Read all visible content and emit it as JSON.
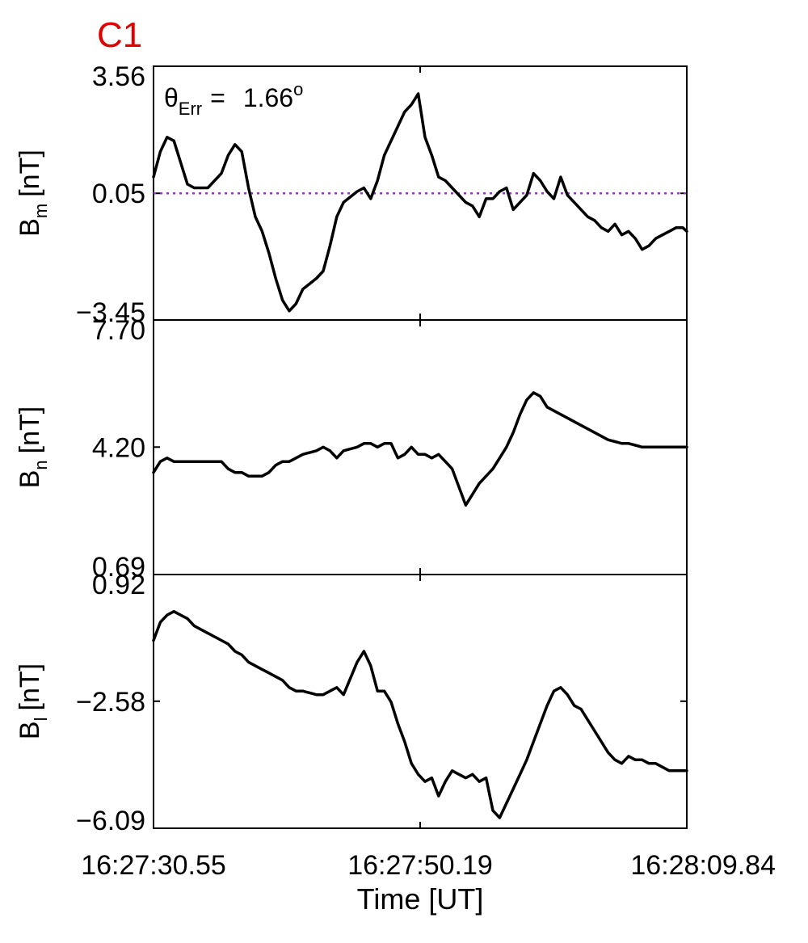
{
  "figure_label": "C1",
  "annotation": {
    "theta_symbol": "θ",
    "theta_subscript": "Err",
    "equals": "=",
    "value": "1.66",
    "unit_superscript": "o"
  },
  "colors": {
    "figure_label": "#e00000",
    "trace": "#000000",
    "reference_line": "#9b30d9",
    "axes": "#000000"
  },
  "x_axis": {
    "label": "Time [UT]",
    "ticks": [
      "16:27:30.55",
      "16:27:50.19",
      "16:28:09.84"
    ],
    "range_seconds": [
      0,
      39.29
    ]
  },
  "chart_data": [
    {
      "type": "line",
      "panel": "Bm",
      "ylabel_symbol": "B",
      "ylabel_subscript": "m",
      "ylabel_unit": "[nT]",
      "ylim": [
        -3.45,
        3.56
      ],
      "yticks": [
        3.56,
        0.05,
        -3.45
      ],
      "ytick_labels": [
        "3.56",
        "0.05",
        "−3.45"
      ],
      "reference_line": {
        "y": 0.05,
        "style": "dotted"
      },
      "x": [
        0,
        0.5,
        1,
        1.5,
        2,
        2.5,
        3,
        3.5,
        4,
        5,
        5.5,
        6,
        6.5,
        7,
        7.5,
        8,
        8.5,
        9,
        9.5,
        10,
        10.5,
        11,
        12,
        12.5,
        13,
        13.5,
        14,
        15,
        15.5,
        16,
        16.5,
        17,
        17.5,
        18,
        18.5,
        19,
        19.5,
        20,
        20.5,
        21,
        21.5,
        22,
        22.5,
        23,
        23.5,
        24,
        24.5,
        25,
        25.5,
        26,
        26.5,
        27,
        27.5,
        28,
        28.5,
        29,
        29.5,
        30,
        30.5,
        31,
        31.5,
        32,
        32.5,
        33,
        33.5,
        34,
        34.5,
        35,
        35.5,
        36,
        36.5,
        37,
        37.5,
        38,
        38.5,
        39,
        39.29
      ],
      "y": [
        0.5,
        1.2,
        1.6,
        1.5,
        0.9,
        0.3,
        0.2,
        0.2,
        0.2,
        0.6,
        1.1,
        1.4,
        1.2,
        0.2,
        -0.6,
        -1.0,
        -1.6,
        -2.3,
        -2.9,
        -3.2,
        -3.0,
        -2.6,
        -2.3,
        -2.1,
        -1.4,
        -0.6,
        -0.2,
        0.1,
        0.2,
        -0.1,
        0.4,
        1.1,
        1.5,
        1.9,
        2.3,
        2.5,
        2.8,
        1.6,
        1.1,
        0.5,
        0.4,
        0.2,
        0.0,
        -0.2,
        -0.3,
        -0.6,
        -0.1,
        -0.1,
        0.1,
        0.2,
        -0.4,
        -0.2,
        0.0,
        0.6,
        0.4,
        0.1,
        -0.1,
        0.5,
        0.0,
        -0.2,
        -0.4,
        -0.6,
        -0.7,
        -0.9,
        -1.0,
        -0.8,
        -1.1,
        -1.0,
        -1.2,
        -1.5,
        -1.4,
        -1.2,
        -1.1,
        -1.0,
        -0.9,
        -0.9,
        -1.0
      ]
    },
    {
      "type": "line",
      "panel": "Bn",
      "ylabel_symbol": "B",
      "ylabel_subscript": "n",
      "ylabel_unit": "[nT]",
      "ylim": [
        0.69,
        7.7
      ],
      "yticks": [
        7.7,
        4.2,
        0.69
      ],
      "ytick_labels": [
        "7.70",
        "4.20",
        "0.69"
      ],
      "x": [
        0,
        0.5,
        1,
        1.5,
        2,
        2.5,
        3,
        3.5,
        4,
        5,
        5.5,
        6,
        6.5,
        7,
        7.5,
        8,
        8.5,
        9,
        9.5,
        10,
        10.5,
        11,
        12,
        12.5,
        13,
        13.5,
        14,
        15,
        15.5,
        16,
        16.5,
        17,
        17.5,
        18,
        18.5,
        19,
        19.5,
        20,
        20.5,
        21,
        21.5,
        22,
        22.5,
        23,
        23.5,
        24,
        24.5,
        25,
        25.5,
        26,
        26.5,
        27,
        27.5,
        28,
        28.5,
        29,
        29.5,
        30,
        30.5,
        31,
        31.5,
        32,
        32.5,
        33,
        33.5,
        34,
        34.5,
        35,
        35.5,
        36,
        36.5,
        37,
        37.5,
        38,
        38.5,
        39,
        39.29
      ],
      "y": [
        3.5,
        3.8,
        3.9,
        3.8,
        3.8,
        3.8,
        3.8,
        3.8,
        3.8,
        3.8,
        3.6,
        3.5,
        3.5,
        3.4,
        3.4,
        3.4,
        3.5,
        3.7,
        3.8,
        3.8,
        3.9,
        4.0,
        4.1,
        4.2,
        4.1,
        3.9,
        4.1,
        4.2,
        4.3,
        4.3,
        4.2,
        4.3,
        4.3,
        3.9,
        4.0,
        4.2,
        4.0,
        4.0,
        3.9,
        4.0,
        3.8,
        3.6,
        3.1,
        2.6,
        2.9,
        3.2,
        3.4,
        3.6,
        3.9,
        4.2,
        4.6,
        5.1,
        5.5,
        5.7,
        5.6,
        5.3,
        5.2,
        5.1,
        5.0,
        4.9,
        4.8,
        4.7,
        4.6,
        4.5,
        4.4,
        4.35,
        4.3,
        4.3,
        4.25,
        4.2,
        4.2,
        4.2,
        4.2,
        4.2,
        4.2,
        4.2,
        4.2
      ]
    },
    {
      "type": "line",
      "panel": "Bl",
      "ylabel_symbol": "B",
      "ylabel_subscript": "l",
      "ylabel_unit": "[nT]",
      "ylim": [
        -6.09,
        0.92
      ],
      "yticks": [
        0.92,
        -2.58,
        -6.09
      ],
      "ytick_labels": [
        "0.92",
        "−2.58",
        "−6.09"
      ],
      "x": [
        0,
        0.5,
        1,
        1.5,
        2,
        2.5,
        3,
        3.5,
        4,
        5,
        5.5,
        6,
        6.5,
        7,
        7.5,
        8,
        8.5,
        9,
        9.5,
        10,
        10.5,
        11,
        12,
        12.5,
        13,
        13.5,
        14,
        15,
        15.5,
        16,
        16.5,
        17,
        17.5,
        18,
        18.5,
        19,
        19.5,
        20,
        20.5,
        21,
        21.5,
        22,
        22.5,
        23,
        23.5,
        24,
        24.5,
        25,
        25.5,
        26,
        26.5,
        27,
        27.5,
        28,
        28.5,
        29,
        29.5,
        30,
        30.5,
        31,
        31.5,
        32,
        32.5,
        33,
        33.5,
        34,
        34.5,
        35,
        35.5,
        36,
        36.5,
        37,
        37.5,
        38,
        38.5,
        39,
        39.29
      ],
      "y": [
        -0.9,
        -0.4,
        -0.2,
        -0.1,
        -0.2,
        -0.3,
        -0.5,
        -0.6,
        -0.7,
        -0.9,
        -1.0,
        -1.2,
        -1.3,
        -1.5,
        -1.6,
        -1.7,
        -1.8,
        -1.9,
        -2.0,
        -2.2,
        -2.3,
        -2.3,
        -2.4,
        -2.4,
        -2.3,
        -2.2,
        -2.4,
        -1.5,
        -1.2,
        -1.6,
        -2.3,
        -2.3,
        -2.6,
        -3.2,
        -3.7,
        -4.3,
        -4.6,
        -4.8,
        -4.7,
        -5.2,
        -4.8,
        -4.5,
        -4.6,
        -4.7,
        -4.6,
        -4.8,
        -4.7,
        -5.6,
        -5.8,
        -5.4,
        -5.0,
        -4.6,
        -4.2,
        -3.7,
        -3.2,
        -2.7,
        -2.3,
        -2.2,
        -2.4,
        -2.7,
        -2.8,
        -3.1,
        -3.4,
        -3.7,
        -4.0,
        -4.2,
        -4.3,
        -4.1,
        -4.2,
        -4.2,
        -4.3,
        -4.3,
        -4.4,
        -4.5,
        -4.5,
        -4.5,
        -4.5
      ]
    }
  ]
}
